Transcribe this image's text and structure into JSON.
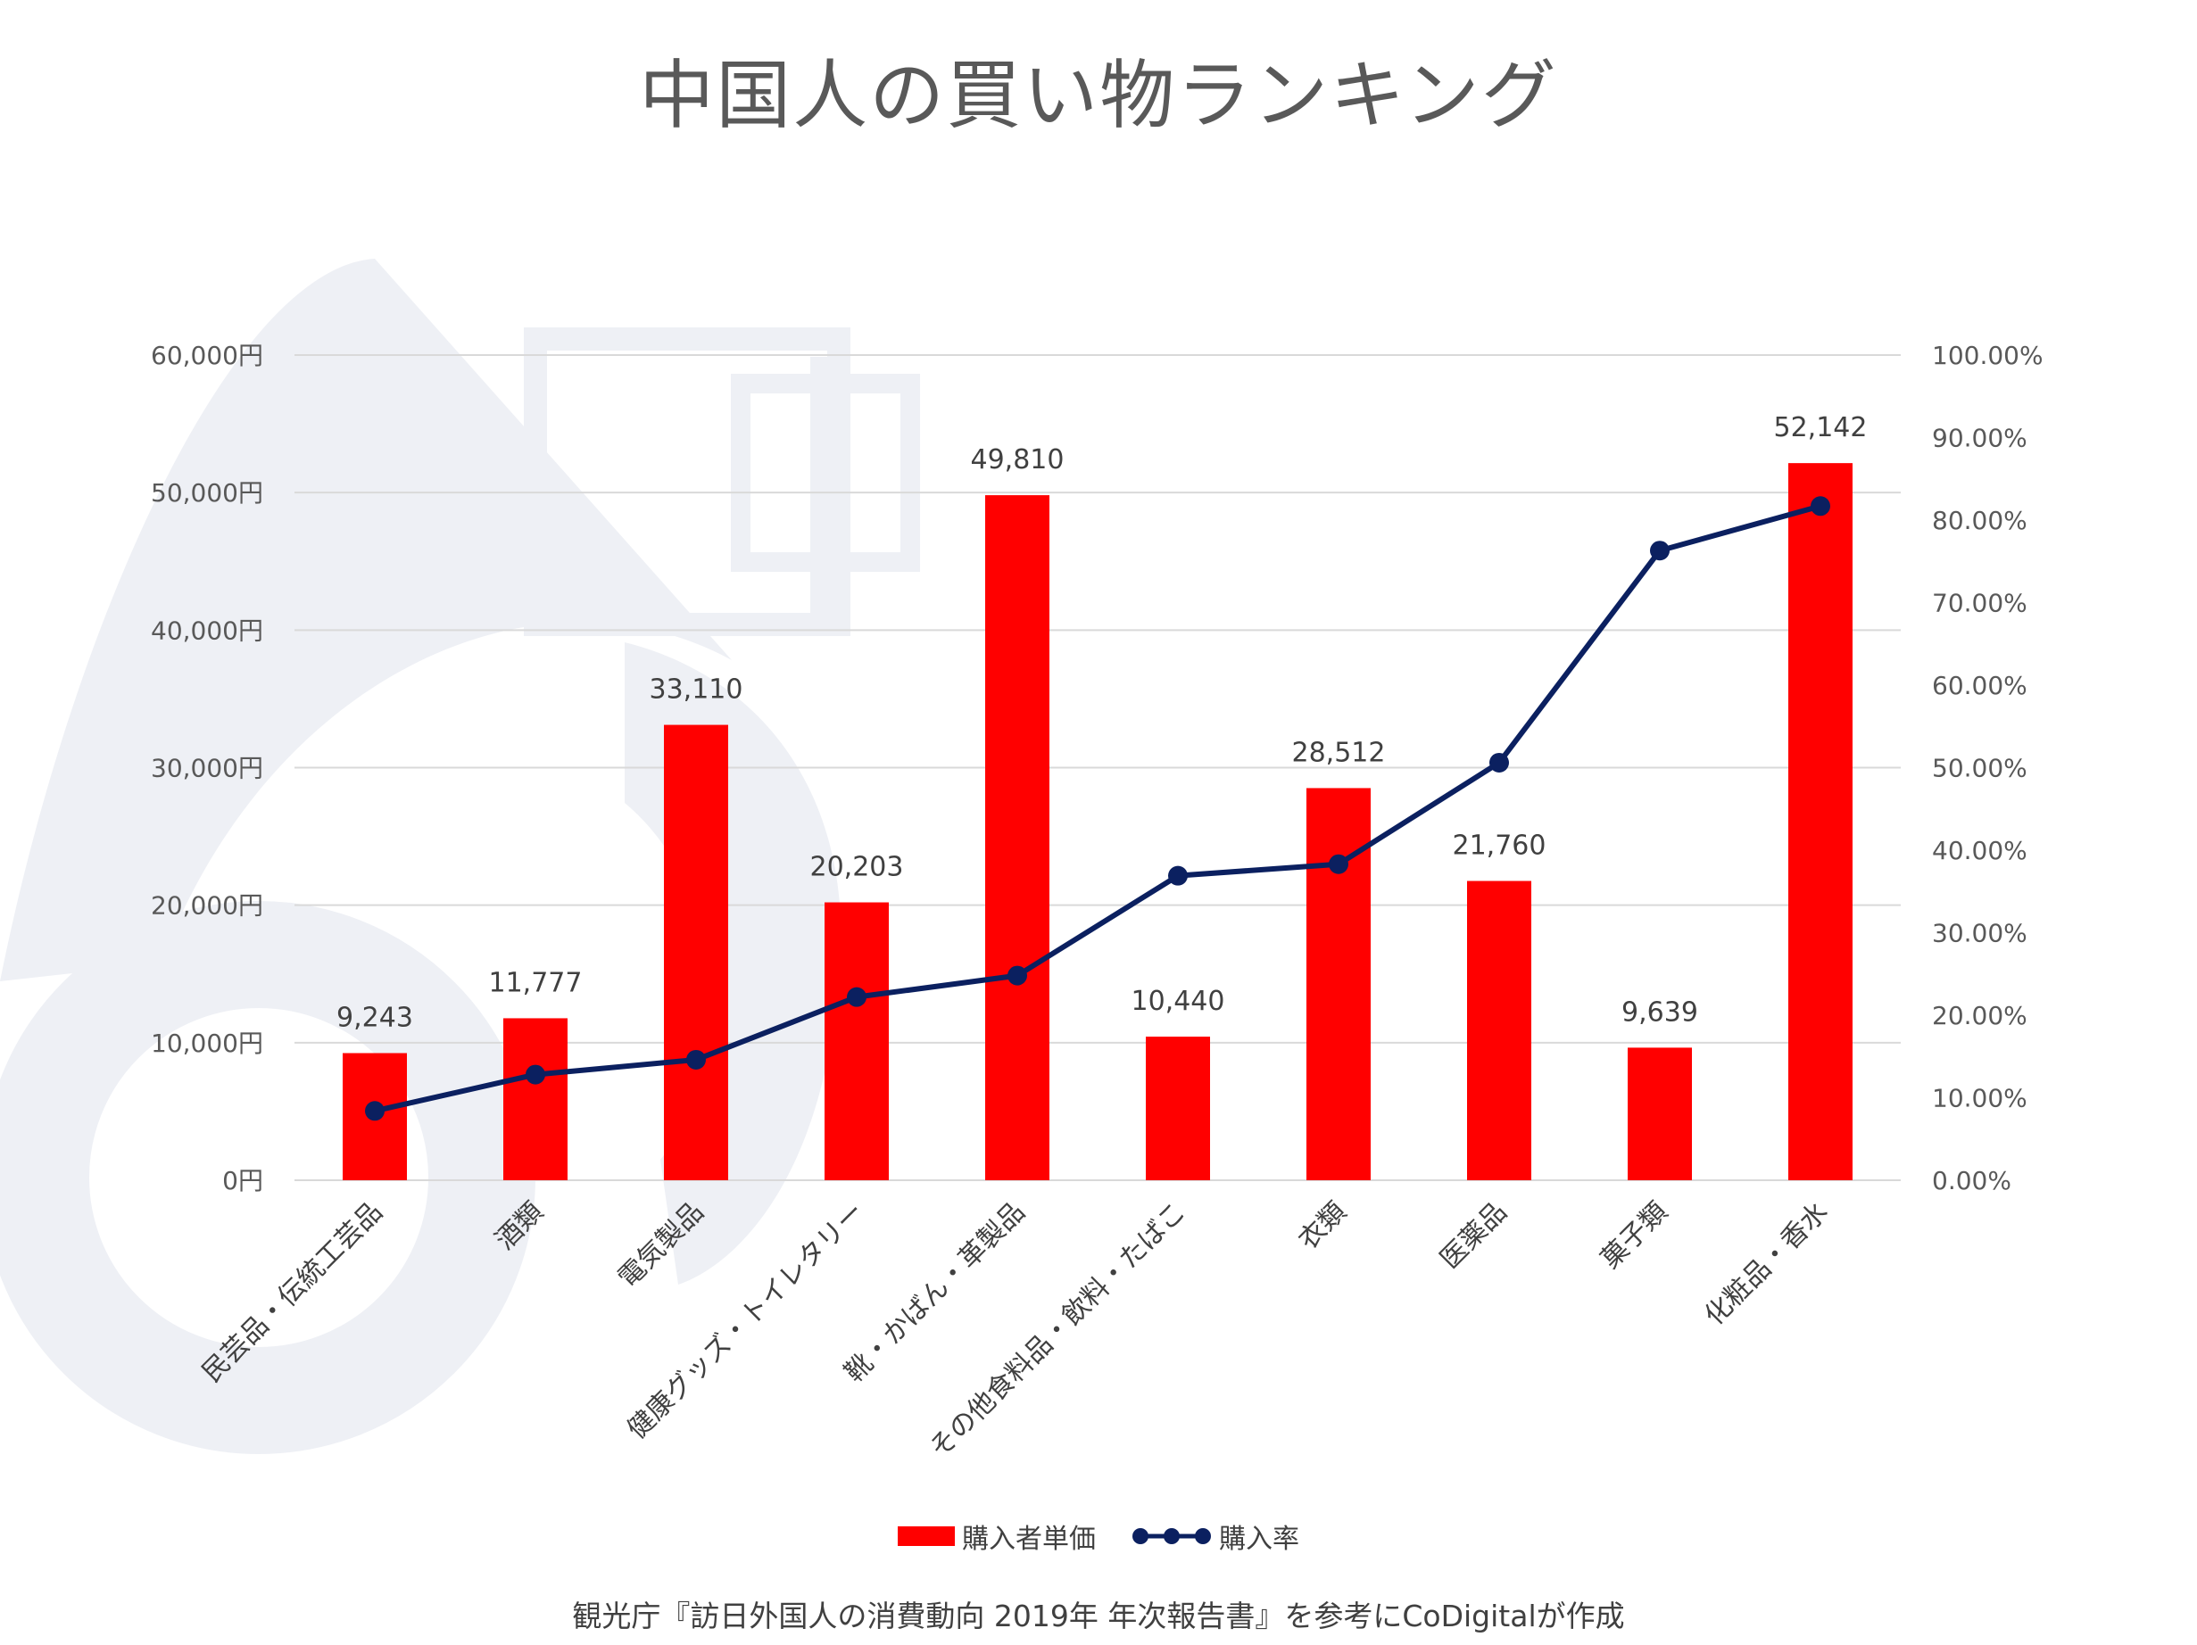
{
  "title": "中国人の買い物ランキング",
  "source": "観光庁『訪日外国人の消費動向 2019年 年次報告書』を参考にCoDigitalが作成",
  "colors": {
    "bar": "#ff0000",
    "line": "#0b2060",
    "grid": "#d9d9d9",
    "watermark": "#eef0f5"
  },
  "chart_data": {
    "type": "bar",
    "categories": [
      "民芸品・伝統工芸品",
      "酒類",
      "電気製品",
      "健康グッズ・トイレタリー",
      "靴・かばん・革製品",
      "その他食料品・飲料・たばこ",
      "衣類",
      "医薬品",
      "菓子類",
      "化粧品・香水"
    ],
    "series": [
      {
        "name": "購入者単価",
        "type": "bar",
        "axis": "left",
        "values": [
          9243,
          11777,
          33110,
          20203,
          49810,
          10440,
          28512,
          21760,
          9639,
          52142
        ],
        "labels": [
          "9,243",
          "11,777",
          "33,110",
          "20,203",
          "49,810",
          "10,440",
          "28,512",
          "21,760",
          "9,639",
          "52,142"
        ]
      },
      {
        "name": "購入率",
        "type": "line",
        "axis": "right",
        "values": [
          8.4,
          12.8,
          14.6,
          22.2,
          24.8,
          36.9,
          38.3,
          50.6,
          76.3,
          81.7
        ]
      }
    ],
    "y_left": {
      "lim": [
        0,
        60000
      ],
      "ticks": [
        "0円",
        "10,000円",
        "20,000円",
        "30,000円",
        "40,000円",
        "50,000円",
        "60,000円"
      ]
    },
    "y_right": {
      "lim": [
        0,
        100
      ],
      "ticks": [
        "0.00%",
        "10.00%",
        "20.00%",
        "30.00%",
        "40.00%",
        "50.00%",
        "60.00%",
        "70.00%",
        "80.00%",
        "90.00%",
        "100.00%"
      ]
    },
    "grid": true,
    "legend_position": "bottom"
  }
}
